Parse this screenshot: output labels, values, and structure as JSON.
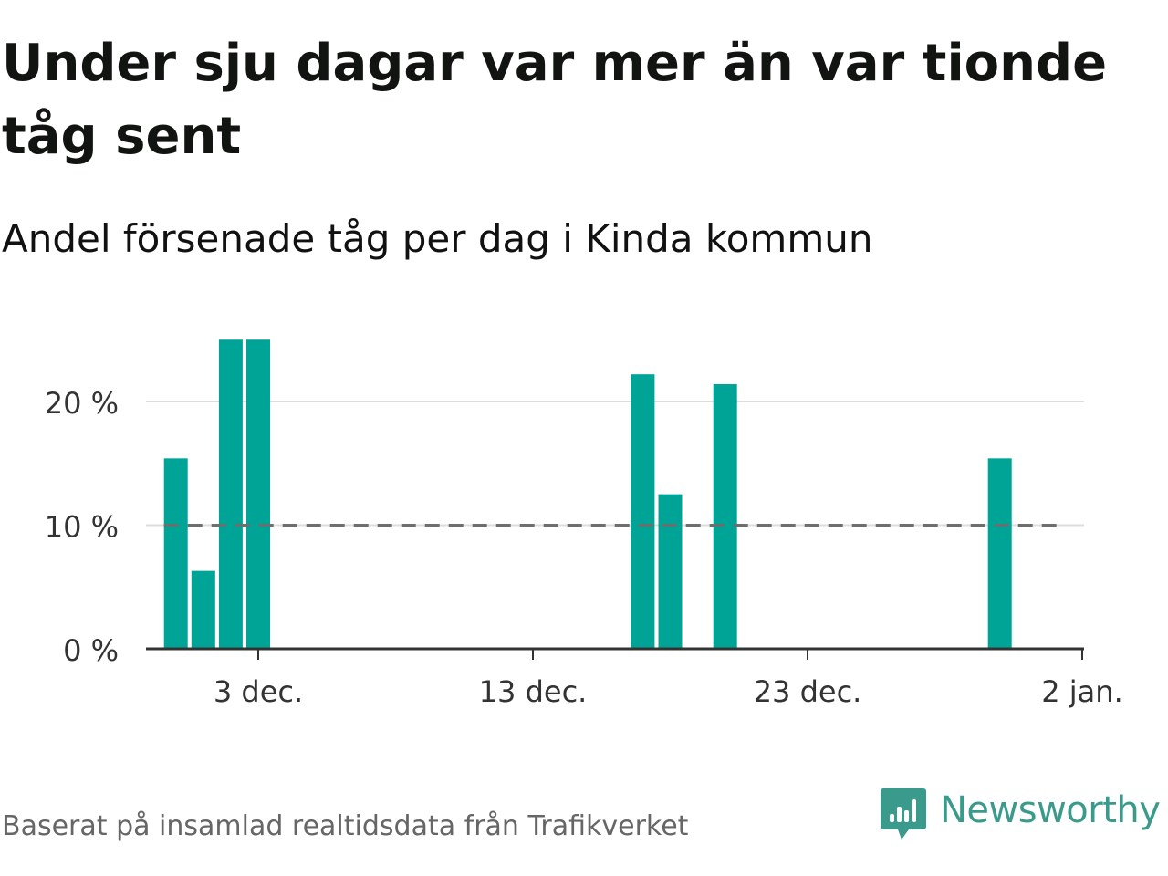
{
  "title": "Under sju dagar var mer än var tionde tåg sent",
  "subtitle": "Andel försenade tåg per dag i Kinda kommun",
  "footer": {
    "source": "Baserat på insamlad realtidsdata från Trafikverket",
    "brand": "Newsworthy",
    "brand_icon": "newsworthy-logo-icon"
  },
  "colors": {
    "bar": "#00a497",
    "gridline": "#dddddd",
    "reference_line": "#6e6e6e",
    "axis": "#333333",
    "brand": "#3a9a8c"
  },
  "chart_data": {
    "type": "bar",
    "title": "",
    "xlabel": "",
    "ylabel": "",
    "x_axis": {
      "type": "date",
      "ticks": [
        {
          "date": "2023-12-03",
          "label": "3 dec."
        },
        {
          "date": "2023-12-13",
          "label": "13 dec."
        },
        {
          "date": "2023-12-23",
          "label": "23 dec."
        },
        {
          "date": "2024-01-02",
          "label": "2 jan."
        }
      ],
      "range": [
        "2023-11-29",
        "2024-01-02"
      ]
    },
    "y_axis": {
      "ticks": [
        0,
        10,
        20
      ],
      "tick_labels": [
        "0 %",
        "10 %",
        "20 %"
      ],
      "ylim": [
        0,
        25
      ]
    },
    "grid": true,
    "reference_line": {
      "value": 10,
      "style": "dashed",
      "from": "2023-11-30",
      "to": "2024-01-01"
    },
    "series": [
      {
        "values": [
          {
            "date": "2023-11-30",
            "value": 15.4
          },
          {
            "date": "2023-12-01",
            "value": 6.3
          },
          {
            "date": "2023-12-02",
            "value": 25.0
          },
          {
            "date": "2023-12-03",
            "value": 25.0
          },
          {
            "date": "2023-12-17",
            "value": 22.2
          },
          {
            "date": "2023-12-18",
            "value": 12.5
          },
          {
            "date": "2023-12-20",
            "value": 21.4
          },
          {
            "date": "2023-12-30",
            "value": 15.4
          }
        ]
      }
    ]
  }
}
